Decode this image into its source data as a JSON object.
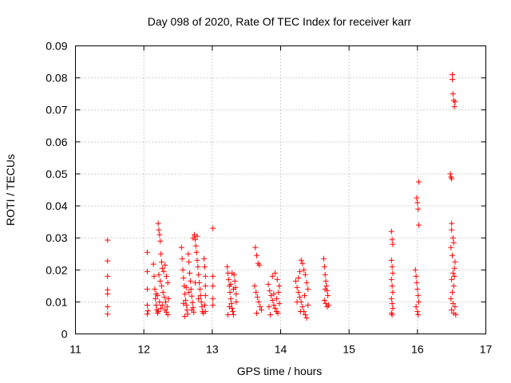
{
  "chart_data": {
    "type": "scatter",
    "title": "Day 098 of 2020, Rate Of TEC Index for receiver karr",
    "xlabel": "GPS time / hours",
    "ylabel": "ROTI / TECUs",
    "xlim": [
      11,
      17
    ],
    "ylim": [
      0,
      0.09
    ],
    "xticks": [
      11,
      12,
      13,
      14,
      15,
      16,
      17
    ],
    "yticks": [
      0,
      0.01,
      0.02,
      0.03,
      0.04,
      0.05,
      0.06,
      0.07,
      0.08,
      0.09
    ],
    "xtick_labels": [
      "11",
      "12",
      "13",
      "14",
      "15",
      "16",
      "17"
    ],
    "ytick_labels": [
      "0",
      "0.01",
      "0.02",
      "0.03",
      "0.04",
      "0.05",
      "0.06",
      "0.07",
      "0.08",
      "0.09"
    ],
    "grid": true,
    "marker": "+",
    "color": "#ff0000",
    "series": [
      {
        "name": "ROTI",
        "points": [
          [
            11.47,
            0.0293
          ],
          [
            11.47,
            0.0228
          ],
          [
            11.47,
            0.018
          ],
          [
            11.47,
            0.0138
          ],
          [
            11.47,
            0.0125
          ],
          [
            11.47,
            0.0085
          ],
          [
            11.47,
            0.0062
          ],
          [
            12.05,
            0.0255
          ],
          [
            12.05,
            0.0195
          ],
          [
            12.05,
            0.014
          ],
          [
            12.05,
            0.009
          ],
          [
            12.05,
            0.0062
          ],
          [
            12.06,
            0.0072
          ],
          [
            12.14,
            0.0218
          ],
          [
            12.15,
            0.018
          ],
          [
            12.16,
            0.014
          ],
          [
            12.17,
            0.011
          ],
          [
            12.18,
            0.009
          ],
          [
            12.19,
            0.0075
          ],
          [
            12.2,
            0.0065
          ],
          [
            12.21,
            0.0345
          ],
          [
            12.22,
            0.0325
          ],
          [
            12.23,
            0.031
          ],
          [
            12.24,
            0.029
          ],
          [
            12.25,
            0.025
          ],
          [
            12.26,
            0.0225
          ],
          [
            12.27,
            0.0205
          ],
          [
            12.22,
            0.0185
          ],
          [
            12.24,
            0.0165
          ],
          [
            12.26,
            0.015
          ],
          [
            12.28,
            0.013
          ],
          [
            12.3,
            0.0115
          ],
          [
            12.32,
            0.01
          ],
          [
            12.34,
            0.0085
          ],
          [
            12.2,
            0.012
          ],
          [
            12.23,
            0.01
          ],
          [
            12.27,
            0.009
          ],
          [
            12.31,
            0.0075
          ],
          [
            12.33,
            0.0068
          ],
          [
            12.35,
            0.006
          ],
          [
            12.29,
            0.0195
          ],
          [
            12.31,
            0.0215
          ],
          [
            12.33,
            0.018
          ],
          [
            12.35,
            0.016
          ],
          [
            12.25,
            0.008
          ],
          [
            12.21,
            0.007
          ],
          [
            12.18,
            0.0125
          ],
          [
            12.36,
            0.011
          ],
          [
            12.55,
            0.027
          ],
          [
            12.56,
            0.0235
          ],
          [
            12.57,
            0.02
          ],
          [
            12.58,
            0.0175
          ],
          [
            12.59,
            0.015
          ],
          [
            12.6,
            0.0125
          ],
          [
            12.61,
            0.0105
          ],
          [
            12.62,
            0.009
          ],
          [
            12.63,
            0.0075
          ],
          [
            12.64,
            0.0062
          ],
          [
            12.65,
            0.025
          ],
          [
            12.66,
            0.0225
          ],
          [
            12.67,
            0.019
          ],
          [
            12.68,
            0.0165
          ],
          [
            12.69,
            0.014
          ],
          [
            12.7,
            0.0118
          ],
          [
            12.71,
            0.0098
          ],
          [
            12.72,
            0.0082
          ],
          [
            12.73,
            0.0068
          ],
          [
            12.74,
            0.031
          ],
          [
            12.75,
            0.0295
          ],
          [
            12.76,
            0.0275
          ],
          [
            12.77,
            0.0255
          ],
          [
            12.78,
            0.023
          ],
          [
            12.79,
            0.021
          ],
          [
            12.8,
            0.0185
          ],
          [
            12.81,
            0.016
          ],
          [
            12.82,
            0.014
          ],
          [
            12.83,
            0.012
          ],
          [
            12.84,
            0.01
          ],
          [
            12.85,
            0.0085
          ],
          [
            12.86,
            0.007
          ],
          [
            12.87,
            0.0065
          ],
          [
            12.72,
            0.03
          ],
          [
            12.78,
            0.0305
          ],
          [
            12.62,
            0.0145
          ],
          [
            12.66,
            0.013
          ],
          [
            12.7,
            0.0075
          ],
          [
            12.75,
            0.016
          ],
          [
            12.8,
            0.011
          ],
          [
            12.58,
            0.0095
          ],
          [
            12.6,
            0.0055
          ],
          [
            12.88,
            0.0235
          ],
          [
            12.89,
            0.021
          ],
          [
            12.9,
            0.018
          ],
          [
            12.9,
            0.015
          ],
          [
            12.9,
            0.012
          ],
          [
            12.89,
            0.009
          ],
          [
            12.9,
            0.007
          ],
          [
            13.01,
            0.033
          ],
          [
            13.01,
            0.018
          ],
          [
            13.01,
            0.015
          ],
          [
            13.01,
            0.011
          ],
          [
            13.01,
            0.009
          ],
          [
            13.22,
            0.021
          ],
          [
            13.23,
            0.019
          ],
          [
            13.24,
            0.017
          ],
          [
            13.25,
            0.015
          ],
          [
            13.26,
            0.013
          ],
          [
            13.27,
            0.011
          ],
          [
            13.28,
            0.0095
          ],
          [
            13.29,
            0.008
          ],
          [
            13.3,
            0.007
          ],
          [
            13.31,
            0.006
          ],
          [
            13.32,
            0.0185
          ],
          [
            13.33,
            0.0165
          ],
          [
            13.34,
            0.0145
          ],
          [
            13.35,
            0.0125
          ],
          [
            13.23,
            0.006
          ],
          [
            13.27,
            0.0155
          ],
          [
            13.31,
            0.014
          ],
          [
            13.35,
            0.01
          ],
          [
            13.29,
            0.019
          ],
          [
            13.25,
            0.0085
          ],
          [
            13.63,
            0.027
          ],
          [
            13.65,
            0.0245
          ],
          [
            13.67,
            0.022
          ],
          [
            13.69,
            0.0215
          ],
          [
            13.62,
            0.015
          ],
          [
            13.64,
            0.013
          ],
          [
            13.66,
            0.0115
          ],
          [
            13.68,
            0.01
          ],
          [
            13.7,
            0.0085
          ],
          [
            13.72,
            0.0075
          ],
          [
            13.65,
            0.0065
          ],
          [
            13.82,
            0.0155
          ],
          [
            13.84,
            0.0135
          ],
          [
            13.86,
            0.012
          ],
          [
            13.88,
            0.0105
          ],
          [
            13.9,
            0.009
          ],
          [
            13.92,
            0.008
          ],
          [
            13.94,
            0.007
          ],
          [
            13.96,
            0.0065
          ],
          [
            13.98,
            0.0095
          ],
          [
            13.88,
            0.018
          ],
          [
            13.92,
            0.019
          ],
          [
            13.95,
            0.017
          ],
          [
            13.98,
            0.015
          ],
          [
            13.85,
            0.006
          ],
          [
            13.9,
            0.0125
          ],
          [
            13.94,
            0.011
          ],
          [
            13.97,
            0.013
          ],
          [
            13.83,
            0.0085
          ],
          [
            14.22,
            0.0165
          ],
          [
            14.24,
            0.0145
          ],
          [
            14.26,
            0.013
          ],
          [
            14.28,
            0.0115
          ],
          [
            14.3,
            0.01
          ],
          [
            14.32,
            0.0085
          ],
          [
            14.34,
            0.007
          ],
          [
            14.36,
            0.006
          ],
          [
            14.38,
            0.005
          ],
          [
            14.3,
            0.023
          ],
          [
            14.32,
            0.022
          ],
          [
            14.34,
            0.02
          ],
          [
            14.36,
            0.0185
          ],
          [
            14.38,
            0.016
          ],
          [
            14.4,
            0.014
          ],
          [
            14.28,
            0.0195
          ],
          [
            14.26,
            0.0175
          ],
          [
            14.24,
            0.01
          ],
          [
            14.4,
            0.009
          ],
          [
            14.35,
            0.012
          ],
          [
            14.29,
            0.007
          ],
          [
            14.63,
            0.0235
          ],
          [
            14.64,
            0.021
          ],
          [
            14.65,
            0.0185
          ],
          [
            14.66,
            0.0165
          ],
          [
            14.67,
            0.015
          ],
          [
            14.68,
            0.0135
          ],
          [
            14.69,
            0.012
          ],
          [
            14.64,
            0.0105
          ],
          [
            14.66,
            0.0095
          ],
          [
            14.68,
            0.0085
          ],
          [
            14.7,
            0.009
          ],
          [
            14.65,
            0.014
          ],
          [
            15.62,
            0.032
          ],
          [
            15.63,
            0.0295
          ],
          [
            15.64,
            0.028
          ],
          [
            15.62,
            0.023
          ],
          [
            15.63,
            0.021
          ],
          [
            15.64,
            0.019
          ],
          [
            15.62,
            0.017
          ],
          [
            15.63,
            0.015
          ],
          [
            15.64,
            0.013
          ],
          [
            15.62,
            0.011
          ],
          [
            15.63,
            0.0095
          ],
          [
            15.64,
            0.008
          ],
          [
            15.62,
            0.0065
          ],
          [
            15.63,
            0.006
          ],
          [
            15.97,
            0.02
          ],
          [
            15.98,
            0.018
          ],
          [
            15.99,
            0.016
          ],
          [
            16.0,
            0.014
          ],
          [
            16.01,
            0.012
          ],
          [
            16.02,
            0.01
          ],
          [
            15.98,
            0.0085
          ],
          [
            16.0,
            0.007
          ],
          [
            16.01,
            0.006
          ],
          [
            16.02,
            0.034
          ],
          [
            16.0,
            0.041
          ],
          [
            15.99,
            0.0425
          ],
          [
            16.01,
            0.039
          ],
          [
            16.02,
            0.0475
          ],
          [
            16.48,
            0.05
          ],
          [
            16.49,
            0.049
          ],
          [
            16.5,
            0.0485
          ],
          [
            16.51,
            0.081
          ],
          [
            16.51,
            0.0795
          ],
          [
            16.52,
            0.075
          ],
          [
            16.53,
            0.073
          ],
          [
            16.55,
            0.0725
          ],
          [
            16.54,
            0.071
          ],
          [
            16.5,
            0.0345
          ],
          [
            16.5,
            0.0325
          ],
          [
            16.52,
            0.03
          ],
          [
            16.53,
            0.0285
          ],
          [
            16.49,
            0.027
          ],
          [
            16.51,
            0.0245
          ],
          [
            16.55,
            0.0225
          ],
          [
            16.54,
            0.0205
          ],
          [
            16.52,
            0.019
          ],
          [
            16.5,
            0.017
          ],
          [
            16.53,
            0.015
          ],
          [
            16.51,
            0.013
          ],
          [
            16.49,
            0.011
          ],
          [
            16.52,
            0.0095
          ],
          [
            16.55,
            0.0085
          ],
          [
            16.5,
            0.0075
          ],
          [
            16.53,
            0.0065
          ],
          [
            16.56,
            0.006
          ],
          [
            16.54,
            0.018
          ]
        ]
      }
    ]
  }
}
